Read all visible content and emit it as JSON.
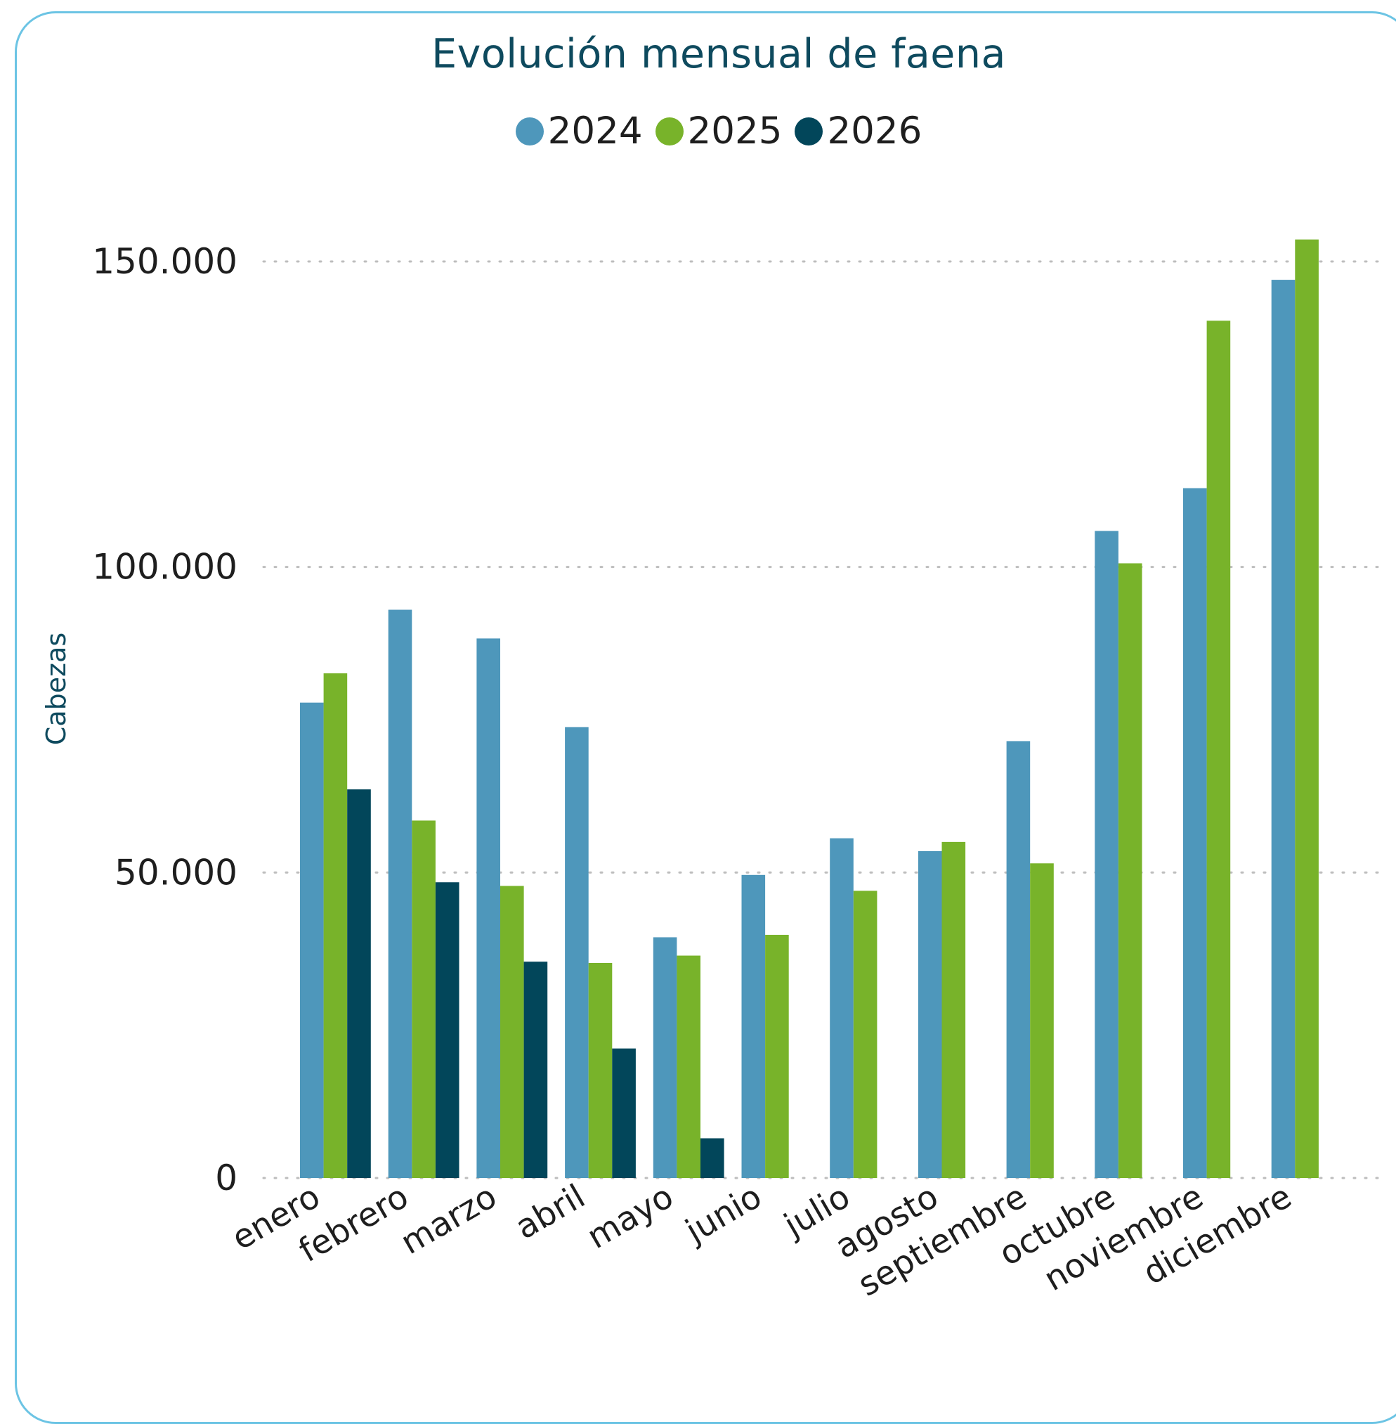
{
  "chart_data": {
    "type": "bar",
    "title": "Evolución mensual de faena",
    "ylabel": "Cabezas",
    "xlabel": "",
    "ylim": [
      0,
      150000
    ],
    "yticks": [
      0,
      50000,
      100000,
      150000
    ],
    "ytick_labels": [
      "0",
      "50.000",
      "100.000",
      "150.000"
    ],
    "grid": "horizontal dotted",
    "legend_position": "top-center",
    "categories": [
      "enero",
      "febrero",
      "marzo",
      "abril",
      "mayo",
      "junio",
      "julio",
      "agosto",
      "septiembre",
      "octubre",
      "noviembre",
      "diciembre"
    ],
    "series": [
      {
        "name": "2024",
        "color": "#4e97bb",
        "values": [
          77800,
          93000,
          88300,
          73800,
          39400,
          49600,
          55600,
          53500,
          71500,
          105900,
          112900,
          147000
        ]
      },
      {
        "name": "2025",
        "color": "#78b32a",
        "values": [
          82600,
          58500,
          47800,
          35200,
          36400,
          39800,
          47000,
          55000,
          51500,
          100600,
          140300,
          153600
        ]
      },
      {
        "name": "2026",
        "color": "#02465a",
        "values": [
          63600,
          48400,
          35400,
          21200,
          6500,
          null,
          null,
          null,
          null,
          null,
          null,
          null
        ]
      }
    ]
  }
}
